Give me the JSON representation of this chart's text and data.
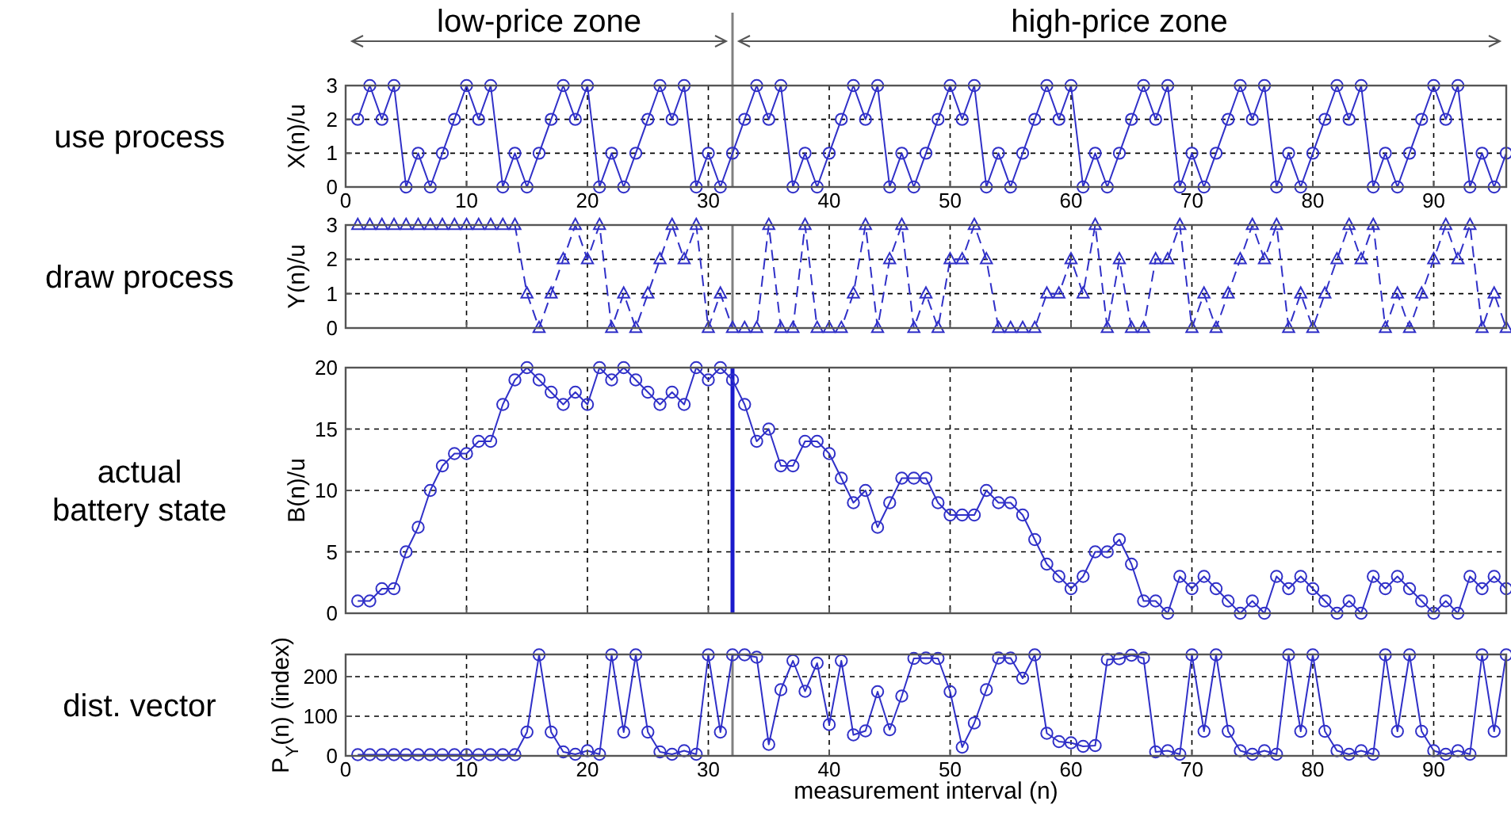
{
  "chart_data": [
    {
      "type": "line",
      "title": "use process",
      "ylabel": "X(n)/u",
      "xlim": [
        0,
        96
      ],
      "xticks": [
        0,
        10,
        20,
        30,
        40,
        50,
        60,
        70,
        80,
        90
      ],
      "ylim": [
        0,
        3
      ],
      "yticks": [
        0,
        1,
        2,
        3
      ],
      "grid": true,
      "marker": "circle",
      "line_style": "solid",
      "x": [
        1,
        2,
        3,
        4,
        5,
        6,
        7,
        8,
        9,
        10,
        11,
        12,
        13,
        14,
        15,
        16,
        17,
        18,
        19,
        20,
        21,
        22,
        23,
        24,
        25,
        26,
        27,
        28,
        29,
        30,
        31,
        32,
        33,
        34,
        35,
        36,
        37,
        38,
        39,
        40,
        41,
        42,
        43,
        44,
        45,
        46,
        47,
        48,
        49,
        50,
        51,
        52,
        53,
        54,
        55,
        56,
        57,
        58,
        59,
        60,
        61,
        62,
        63,
        64,
        65,
        66,
        67,
        68,
        69,
        70,
        71,
        72,
        73,
        74,
        75,
        76,
        77,
        78,
        79,
        80,
        81,
        82,
        83,
        84,
        85,
        86,
        87,
        88,
        89,
        90,
        91,
        92,
        93,
        94,
        95,
        96
      ],
      "series": [
        {
          "color": "#3030c8",
          "values": [
            2,
            3,
            2,
            3,
            0,
            1,
            0,
            1,
            2,
            3,
            2,
            3,
            0,
            1,
            0,
            1,
            2,
            3,
            2,
            3,
            0,
            1,
            0,
            1,
            2,
            3,
            2,
            3,
            0,
            1,
            0,
            1,
            2,
            3,
            2,
            3,
            0,
            1,
            0,
            1,
            2,
            3,
            2,
            3,
            0,
            1,
            0,
            1,
            2,
            3,
            2,
            3,
            0,
            1,
            0,
            1,
            2,
            3,
            2,
            3,
            0,
            1,
            0,
            1,
            2,
            3,
            2,
            3,
            0,
            1,
            0,
            1,
            2,
            3,
            2,
            3,
            0,
            1,
            0,
            1,
            2,
            3,
            2,
            3,
            0,
            1,
            0,
            1,
            2,
            3,
            2,
            3,
            0,
            1,
            0,
            1
          ]
        }
      ],
      "ref_lines": [
        {
          "axis": "x",
          "value": 32,
          "color": "#808080"
        }
      ],
      "annotations": [
        "low-price zone",
        "high-price zone"
      ]
    },
    {
      "type": "line",
      "title": "draw process",
      "ylabel": "Y(n)/u",
      "xlim": [
        0,
        96
      ],
      "xticks": [
        0,
        10,
        20,
        30,
        40,
        50,
        60,
        70,
        80,
        90
      ],
      "ylim": [
        0,
        3
      ],
      "yticks": [
        0,
        1,
        2,
        3
      ],
      "grid": true,
      "marker": "triangle",
      "line_style": "dashed",
      "tick_labels": "y",
      "x": [
        1,
        2,
        3,
        4,
        5,
        6,
        7,
        8,
        9,
        10,
        11,
        12,
        13,
        14,
        15,
        16,
        17,
        18,
        19,
        20,
        21,
        22,
        23,
        24,
        25,
        26,
        27,
        28,
        29,
        30,
        31,
        32,
        33,
        34,
        35,
        36,
        37,
        38,
        39,
        40,
        41,
        42,
        43,
        44,
        45,
        46,
        47,
        48,
        49,
        50,
        51,
        52,
        53,
        54,
        55,
        56,
        57,
        58,
        59,
        60,
        61,
        62,
        63,
        64,
        65,
        66,
        67,
        68,
        69,
        70,
        71,
        72,
        73,
        74,
        75,
        76,
        77,
        78,
        79,
        80,
        81,
        82,
        83,
        84,
        85,
        86,
        87,
        88,
        89,
        90,
        91,
        92,
        93,
        94,
        95,
        96
      ],
      "series": [
        {
          "color": "#3030c8",
          "values": [
            3,
            3,
            3,
            3,
            3,
            3,
            3,
            3,
            3,
            3,
            3,
            3,
            3,
            3,
            1,
            0,
            1,
            2,
            3,
            2,
            3,
            0,
            1,
            0,
            1,
            2,
            3,
            2,
            3,
            0,
            1,
            0,
            0,
            0,
            3,
            0,
            0,
            3,
            0,
            0,
            0,
            1,
            3,
            0,
            2,
            3,
            0,
            1,
            0,
            2,
            2,
            3,
            2,
            0,
            0,
            0,
            0,
            1,
            1,
            2,
            1,
            3,
            0,
            2,
            0,
            0,
            2,
            2,
            3,
            0,
            1,
            0,
            1,
            2,
            3,
            2,
            3,
            0,
            1,
            0,
            1,
            2,
            3,
            2,
            3,
            0,
            1,
            0,
            1,
            2,
            3,
            2,
            3,
            0,
            1,
            0
          ]
        }
      ],
      "ref_lines": [
        {
          "axis": "x",
          "value": 32,
          "color": "#808080"
        }
      ]
    },
    {
      "type": "line",
      "title": "actual battery state",
      "ylabel": "B(n)/u",
      "xlim": [
        0,
        96
      ],
      "xticks": [
        0,
        10,
        20,
        30,
        40,
        50,
        60,
        70,
        80,
        90
      ],
      "ylim": [
        0,
        20
      ],
      "yticks": [
        0,
        5,
        10,
        15,
        20
      ],
      "grid": true,
      "marker": "circle",
      "line_style": "solid",
      "tick_labels": "y",
      "x": [
        1,
        2,
        3,
        4,
        5,
        6,
        7,
        8,
        9,
        10,
        11,
        12,
        13,
        14,
        15,
        16,
        17,
        18,
        19,
        20,
        21,
        22,
        23,
        24,
        25,
        26,
        27,
        28,
        29,
        30,
        31,
        32,
        33,
        34,
        35,
        36,
        37,
        38,
        39,
        40,
        41,
        42,
        43,
        44,
        45,
        46,
        47,
        48,
        49,
        50,
        51,
        52,
        53,
        54,
        55,
        56,
        57,
        58,
        59,
        60,
        61,
        62,
        63,
        64,
        65,
        66,
        67,
        68,
        69,
        70,
        71,
        72,
        73,
        74,
        75,
        76,
        77,
        78,
        79,
        80,
        81,
        82,
        83,
        84,
        85,
        86,
        87,
        88,
        89,
        90,
        91,
        92,
        93,
        94,
        95,
        96
      ],
      "series": [
        {
          "color": "#3030c8",
          "values": [
            1,
            1,
            2,
            2,
            5,
            7,
            10,
            12,
            13,
            13,
            14,
            14,
            17,
            19,
            20,
            19,
            18,
            17,
            18,
            17,
            20,
            19,
            20,
            19,
            18,
            17,
            18,
            17,
            20,
            19,
            20,
            19,
            17,
            14,
            15,
            12,
            12,
            14,
            14,
            13,
            11,
            9,
            10,
            7,
            9,
            11,
            11,
            11,
            9,
            8,
            8,
            8,
            10,
            9,
            9,
            8,
            6,
            4,
            3,
            2,
            3,
            5,
            5,
            6,
            4,
            1,
            1,
            0,
            3,
            2,
            3,
            2,
            1,
            0,
            1,
            0,
            3,
            2,
            3,
            2,
            1,
            0,
            1,
            0,
            3,
            2,
            3,
            2,
            1,
            0,
            1,
            0,
            3,
            2,
            3,
            2
          ]
        }
      ],
      "ref_lines": [
        {
          "axis": "x",
          "value": 32,
          "color": "#1a1acc"
        }
      ]
    },
    {
      "type": "line",
      "title": "dist. vector",
      "ylabel": "P$_{Y}$(n) (index)",
      "xlabel": "measurement interval (n)",
      "xlim": [
        0,
        96
      ],
      "xticks": [
        0,
        10,
        20,
        30,
        40,
        50,
        60,
        70,
        80,
        90
      ],
      "ylim": [
        0,
        256
      ],
      "yticks": [
        0,
        100,
        200
      ],
      "grid": true,
      "marker": "circle",
      "line_style": "solid",
      "x": [
        1,
        2,
        3,
        4,
        5,
        6,
        7,
        8,
        9,
        10,
        11,
        12,
        13,
        14,
        15,
        16,
        17,
        18,
        19,
        20,
        21,
        22,
        23,
        24,
        25,
        26,
        27,
        28,
        29,
        30,
        31,
        32,
        33,
        34,
        35,
        36,
        37,
        38,
        39,
        40,
        41,
        42,
        43,
        44,
        45,
        46,
        47,
        48,
        49,
        50,
        51,
        52,
        53,
        54,
        55,
        56,
        57,
        58,
        59,
        60,
        61,
        62,
        63,
        64,
        65,
        66,
        67,
        68,
        69,
        70,
        71,
        72,
        73,
        74,
        75,
        76,
        77,
        78,
        79,
        80,
        81,
        82,
        83,
        84,
        85,
        86,
        87,
        88,
        89,
        90,
        91,
        92,
        93,
        94,
        95,
        96
      ],
      "series": [
        {
          "color": "#3030c8",
          "values": [
            3,
            3,
            3,
            3,
            3,
            3,
            3,
            3,
            3,
            3,
            3,
            3,
            3,
            3,
            60,
            255,
            60,
            10,
            4,
            13,
            4,
            255,
            60,
            255,
            60,
            10,
            4,
            13,
            4,
            255,
            60,
            255,
            255,
            249,
            29,
            167,
            240,
            163,
            234,
            79,
            240,
            53,
            63,
            162,
            66,
            151,
            246,
            247,
            246,
            162,
            22,
            83,
            167,
            247,
            247,
            196,
            255,
            57,
            36,
            33,
            24,
            26,
            243,
            245,
            254,
            247,
            10,
            13,
            4,
            255,
            62,
            255,
            62,
            13,
            4,
            13,
            4,
            255,
            62,
            255,
            62,
            13,
            4,
            13,
            4,
            255,
            62,
            255,
            62,
            13,
            4,
            13,
            4,
            255,
            62,
            255
          ]
        }
      ],
      "ref_lines": [
        {
          "axis": "x",
          "value": 32,
          "color": "#808080"
        }
      ]
    }
  ]
}
